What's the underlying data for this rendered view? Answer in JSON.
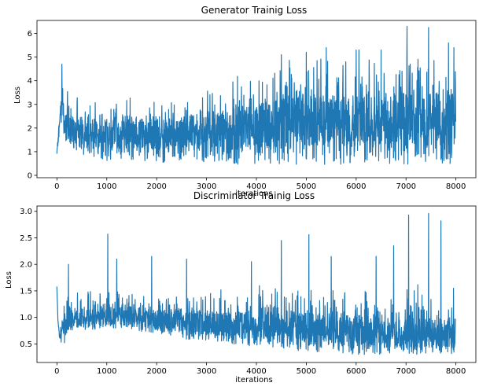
{
  "chart_data": [
    {
      "type": "line",
      "title": "Generator Trainig Loss",
      "xlabel": "iterations",
      "ylabel": "Loss",
      "xlim": [
        -400,
        8400
      ],
      "ylim": [
        -0.1,
        6.55
      ],
      "xticks": [
        0,
        1000,
        2000,
        3000,
        4000,
        5000,
        6000,
        7000,
        8000
      ],
      "yticks": [
        0,
        1,
        2,
        3,
        4,
        5,
        6
      ],
      "grid": false,
      "series_color": "#1f77b4",
      "n_points": 8000,
      "series": [
        {
          "profile": {
            "x": [
              0,
              50,
              100,
              150,
              300,
              500,
              1000,
              1500,
              2000,
              2500,
              3000,
              3500,
              4000,
              4500,
              5000,
              5500,
              6000,
              6500,
              7000,
              7500,
              8000
            ],
            "low": [
              0.9,
              1.6,
              2.4,
              1.3,
              1.1,
              0.9,
              0.6,
              0.6,
              0.55,
              0.55,
              0.5,
              0.45,
              0.45,
              0.45,
              0.45,
              0.45,
              0.45,
              0.45,
              0.45,
              0.45,
              0.5
            ],
            "high": [
              1.1,
              2.8,
              4.7,
              4.2,
              3.6,
              3.3,
              3.7,
              3.4,
              3.3,
              3.6,
              3.9,
              4.2,
              4.7,
              5.0,
              5.2,
              5.3,
              5.4,
              5.5,
              5.9,
              5.6,
              5.3
            ],
            "mean": [
              1.0,
              2.2,
              3.3,
              2.0,
              1.8,
              1.8,
              1.8,
              1.8,
              1.7,
              1.8,
              1.9,
              2.0,
              2.1,
              2.2,
              2.3,
              2.3,
              2.3,
              2.3,
              2.4,
              2.3,
              2.4
            ]
          },
          "peaks": [
            [
              100,
              4.7
            ],
            [
              4500,
              5.1
            ],
            [
              5000,
              5.2
            ],
            [
              5400,
              5.4
            ],
            [
              6000,
              5.3
            ],
            [
              6500,
              5.3
            ],
            [
              7020,
              6.3
            ],
            [
              7450,
              6.25
            ],
            [
              7850,
              5.6
            ],
            [
              7960,
              5.4
            ]
          ]
        }
      ]
    },
    {
      "type": "line",
      "title": "Discriminator Trainig Loss",
      "xlabel": "iterations",
      "ylabel": "Loss",
      "xlim": [
        -400,
        8400
      ],
      "ylim": [
        0.15,
        3.1
      ],
      "xticks": [
        0,
        1000,
        2000,
        3000,
        4000,
        5000,
        6000,
        7000,
        8000
      ],
      "yticks": [
        0.5,
        1.0,
        1.5,
        2.0,
        2.5,
        3.0
      ],
      "grid": false,
      "series_color": "#1f77b4",
      "n_points": 8000,
      "series": [
        {
          "profile": {
            "x": [
              0,
              20,
              60,
              100,
              200,
              500,
              1000,
              1500,
              2000,
              2500,
              3000,
              3500,
              4000,
              4500,
              5000,
              5500,
              6000,
              6500,
              7000,
              7500,
              8000
            ],
            "low": [
              1.55,
              0.9,
              0.45,
              0.3,
              0.7,
              0.75,
              0.8,
              0.75,
              0.7,
              0.6,
              0.55,
              0.5,
              0.45,
              0.4,
              0.35,
              0.35,
              0.3,
              0.3,
              0.3,
              0.3,
              0.3
            ],
            "high": [
              1.6,
              1.0,
              0.7,
              1.2,
              1.5,
              1.5,
              1.6,
              1.6,
              1.5,
              1.55,
              1.6,
              1.6,
              1.6,
              1.7,
              1.7,
              1.6,
              1.6,
              1.6,
              1.7,
              1.7,
              1.6
            ],
            "mean": [
              1.55,
              0.95,
              0.55,
              0.8,
              0.95,
              1.0,
              1.05,
              1.0,
              0.95,
              0.95,
              0.9,
              0.85,
              0.85,
              0.85,
              0.8,
              0.75,
              0.75,
              0.7,
              0.7,
              0.7,
              0.7
            ]
          },
          "peaks": [
            [
              0,
              1.58
            ],
            [
              230,
              2.0
            ],
            [
              1020,
              2.57
            ],
            [
              1200,
              2.1
            ],
            [
              1900,
              2.15
            ],
            [
              2600,
              2.1
            ],
            [
              3900,
              2.05
            ],
            [
              4500,
              2.45
            ],
            [
              5050,
              2.56
            ],
            [
              5500,
              2.15
            ],
            [
              6400,
              2.15
            ],
            [
              6750,
              2.35
            ],
            [
              7050,
              2.93
            ],
            [
              7450,
              2.96
            ],
            [
              7700,
              2.82
            ],
            [
              7950,
              1.55
            ]
          ]
        }
      ]
    }
  ]
}
